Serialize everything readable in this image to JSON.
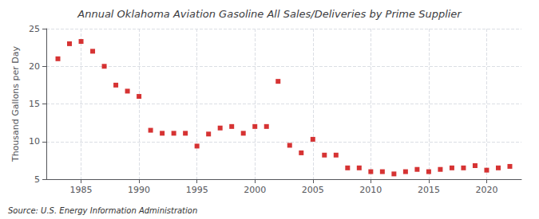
{
  "chart_data": {
    "type": "scatter",
    "title": "Annual Oklahoma Aviation Gasoline All Sales/Deliveries by Prime Supplier",
    "ylabel": "Thousand Gallons per Day",
    "source": "Source: U.S. Energy Information Administration",
    "color": "#cc0000",
    "marker": "square",
    "grid": true,
    "xlim": [
      1982,
      2023
    ],
    "ylim": [
      5,
      25
    ],
    "xticks": [
      1985,
      1990,
      1995,
      2000,
      2005,
      2010,
      2015,
      2020
    ],
    "yticks": [
      5,
      10,
      15,
      20,
      25
    ],
    "x": [
      1983,
      1984,
      1985,
      1986,
      1987,
      1988,
      1989,
      1990,
      1991,
      1992,
      1993,
      1994,
      1995,
      1996,
      1997,
      1998,
      1999,
      2000,
      2001,
      2002,
      2003,
      2004,
      2005,
      2006,
      2007,
      2008,
      2009,
      2010,
      2011,
      2012,
      2013,
      2014,
      2015,
      2016,
      2017,
      2018,
      2019,
      2020,
      2021,
      2022
    ],
    "values": [
      21.0,
      23.0,
      23.3,
      22.0,
      20.0,
      17.5,
      16.7,
      16.0,
      11.5,
      11.1,
      11.1,
      11.1,
      9.4,
      11.0,
      11.8,
      12.0,
      11.1,
      12.0,
      12.0,
      18.0,
      9.5,
      8.5,
      10.3,
      8.2,
      8.2,
      6.5,
      6.5,
      6.0,
      6.0,
      5.7,
      6.0,
      6.3,
      6.0,
      6.3,
      6.5,
      6.5,
      6.8,
      6.2,
      6.5,
      6.7
    ]
  }
}
